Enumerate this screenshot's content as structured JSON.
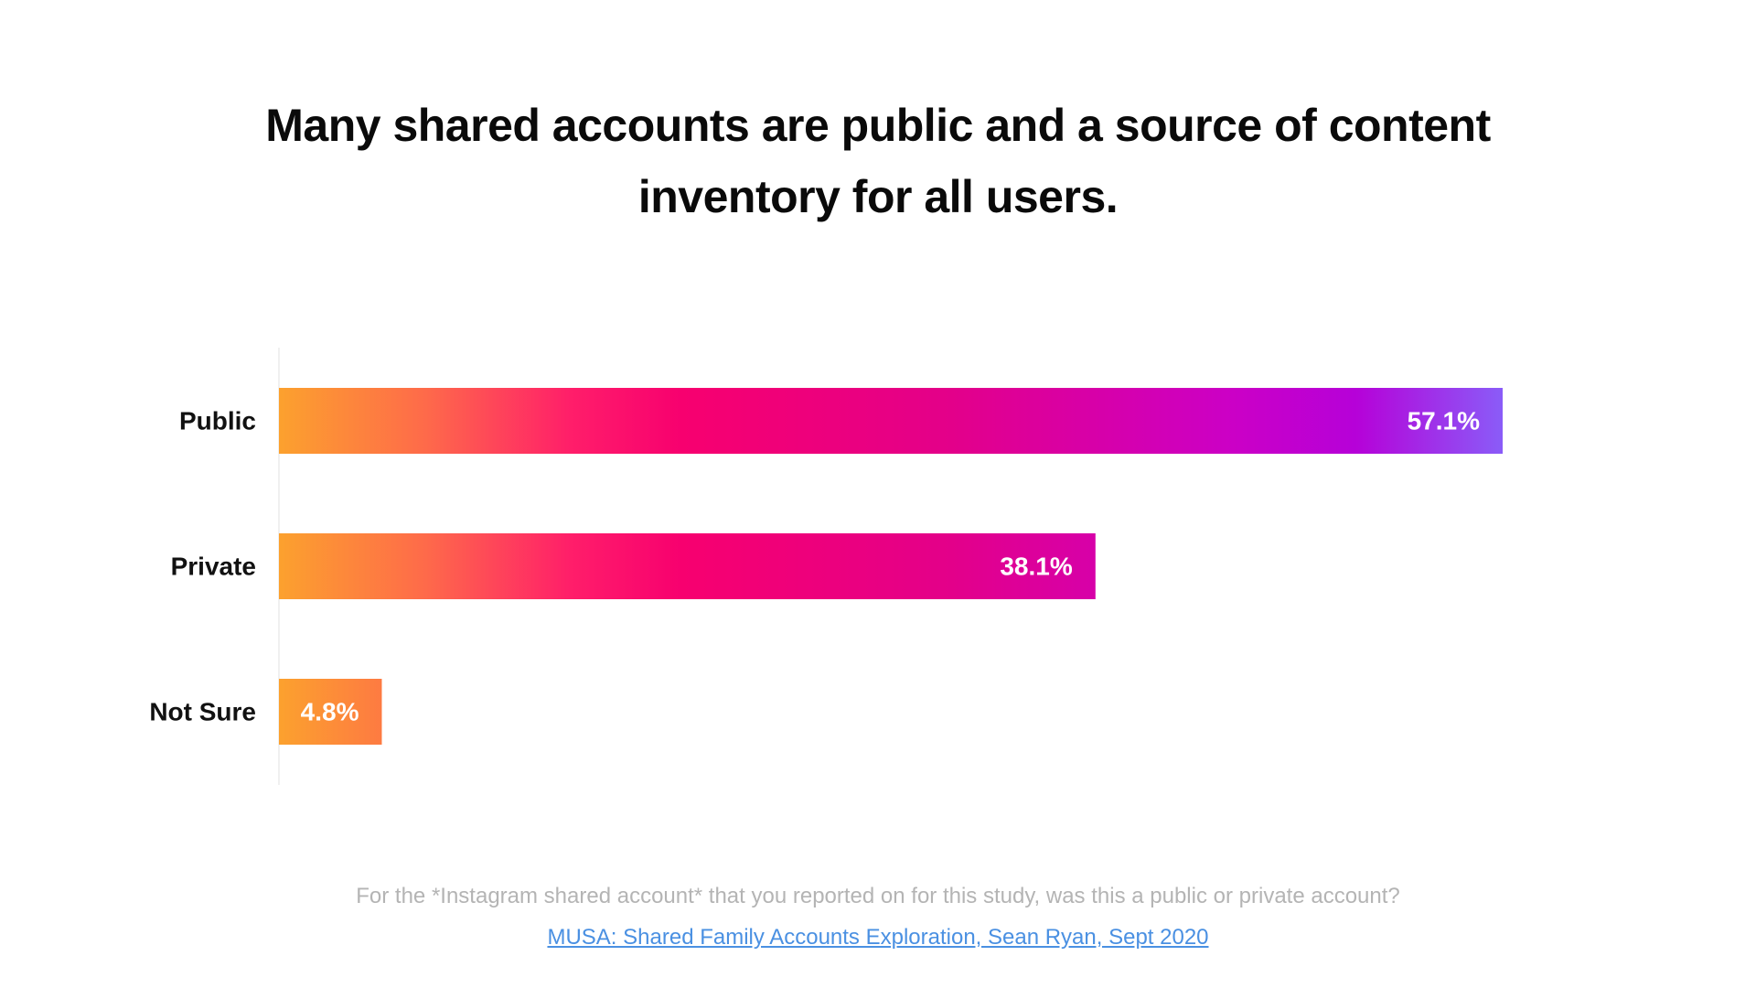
{
  "title": "Many shared accounts are public and a source of content inventory for all users.",
  "question": "For the *Instagram shared account* that you reported on for this study, was this a public or private account?",
  "source_link": "MUSA: Shared Family Accounts Exploration, Sean Ryan, Sept 2020",
  "colors": {
    "gradient": [
      "#fca12e",
      "#fe6a4a",
      "#ff1d6a",
      "#f7006f",
      "#e3008a",
      "#cb00c6",
      "#b601d8",
      "#8a5cf8"
    ],
    "axis": "#e2e2e2",
    "label": "#111111",
    "value_label": "#ffffff"
  },
  "chart_data": {
    "type": "bar",
    "orientation": "horizontal",
    "title": "Many shared accounts are public and a source of content inventory for all users.",
    "categories": [
      "Public",
      "Private",
      "Not Sure"
    ],
    "values": [
      57.1,
      38.1,
      4.8
    ],
    "value_labels": [
      "57.1%",
      "38.1%",
      "4.8%"
    ],
    "xlim": [
      0,
      57.1
    ],
    "xlabel": "",
    "ylabel": "",
    "grid": false,
    "unit": "%"
  }
}
